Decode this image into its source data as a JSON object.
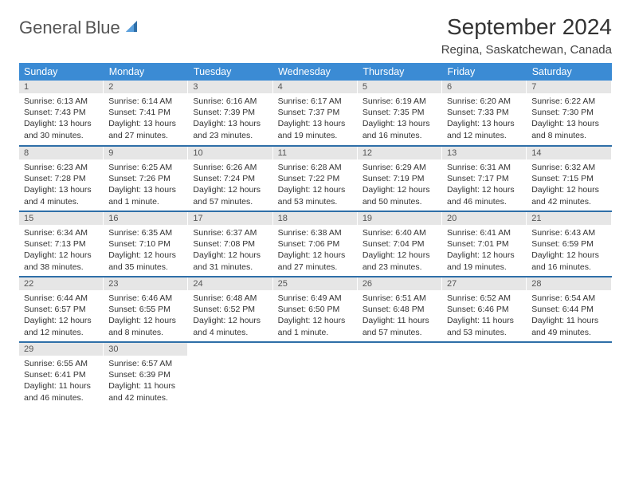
{
  "logo": {
    "part1": "General",
    "part2": "Blue"
  },
  "title": "September 2024",
  "subtitle": "Regina, Saskatchewan, Canada",
  "colors": {
    "header_bg": "#3b8bd4",
    "header_text": "#ffffff",
    "row_divider": "#2f6fa8",
    "daynum_bg": "#e6e6e6",
    "logo_gray": "#555555",
    "logo_blue": "#3b7fc4"
  },
  "dayNames": [
    "Sunday",
    "Monday",
    "Tuesday",
    "Wednesday",
    "Thursday",
    "Friday",
    "Saturday"
  ],
  "days": [
    {
      "n": 1,
      "sr": "6:13 AM",
      "ss": "7:43 PM",
      "dl": "13 hours and 30 minutes."
    },
    {
      "n": 2,
      "sr": "6:14 AM",
      "ss": "7:41 PM",
      "dl": "13 hours and 27 minutes."
    },
    {
      "n": 3,
      "sr": "6:16 AM",
      "ss": "7:39 PM",
      "dl": "13 hours and 23 minutes."
    },
    {
      "n": 4,
      "sr": "6:17 AM",
      "ss": "7:37 PM",
      "dl": "13 hours and 19 minutes."
    },
    {
      "n": 5,
      "sr": "6:19 AM",
      "ss": "7:35 PM",
      "dl": "13 hours and 16 minutes."
    },
    {
      "n": 6,
      "sr": "6:20 AM",
      "ss": "7:33 PM",
      "dl": "13 hours and 12 minutes."
    },
    {
      "n": 7,
      "sr": "6:22 AM",
      "ss": "7:30 PM",
      "dl": "13 hours and 8 minutes."
    },
    {
      "n": 8,
      "sr": "6:23 AM",
      "ss": "7:28 PM",
      "dl": "13 hours and 4 minutes."
    },
    {
      "n": 9,
      "sr": "6:25 AM",
      "ss": "7:26 PM",
      "dl": "13 hours and 1 minute."
    },
    {
      "n": 10,
      "sr": "6:26 AM",
      "ss": "7:24 PM",
      "dl": "12 hours and 57 minutes."
    },
    {
      "n": 11,
      "sr": "6:28 AM",
      "ss": "7:22 PM",
      "dl": "12 hours and 53 minutes."
    },
    {
      "n": 12,
      "sr": "6:29 AM",
      "ss": "7:19 PM",
      "dl": "12 hours and 50 minutes."
    },
    {
      "n": 13,
      "sr": "6:31 AM",
      "ss": "7:17 PM",
      "dl": "12 hours and 46 minutes."
    },
    {
      "n": 14,
      "sr": "6:32 AM",
      "ss": "7:15 PM",
      "dl": "12 hours and 42 minutes."
    },
    {
      "n": 15,
      "sr": "6:34 AM",
      "ss": "7:13 PM",
      "dl": "12 hours and 38 minutes."
    },
    {
      "n": 16,
      "sr": "6:35 AM",
      "ss": "7:10 PM",
      "dl": "12 hours and 35 minutes."
    },
    {
      "n": 17,
      "sr": "6:37 AM",
      "ss": "7:08 PM",
      "dl": "12 hours and 31 minutes."
    },
    {
      "n": 18,
      "sr": "6:38 AM",
      "ss": "7:06 PM",
      "dl": "12 hours and 27 minutes."
    },
    {
      "n": 19,
      "sr": "6:40 AM",
      "ss": "7:04 PM",
      "dl": "12 hours and 23 minutes."
    },
    {
      "n": 20,
      "sr": "6:41 AM",
      "ss": "7:01 PM",
      "dl": "12 hours and 19 minutes."
    },
    {
      "n": 21,
      "sr": "6:43 AM",
      "ss": "6:59 PM",
      "dl": "12 hours and 16 minutes."
    },
    {
      "n": 22,
      "sr": "6:44 AM",
      "ss": "6:57 PM",
      "dl": "12 hours and 12 minutes."
    },
    {
      "n": 23,
      "sr": "6:46 AM",
      "ss": "6:55 PM",
      "dl": "12 hours and 8 minutes."
    },
    {
      "n": 24,
      "sr": "6:48 AM",
      "ss": "6:52 PM",
      "dl": "12 hours and 4 minutes."
    },
    {
      "n": 25,
      "sr": "6:49 AM",
      "ss": "6:50 PM",
      "dl": "12 hours and 1 minute."
    },
    {
      "n": 26,
      "sr": "6:51 AM",
      "ss": "6:48 PM",
      "dl": "11 hours and 57 minutes."
    },
    {
      "n": 27,
      "sr": "6:52 AM",
      "ss": "6:46 PM",
      "dl": "11 hours and 53 minutes."
    },
    {
      "n": 28,
      "sr": "6:54 AM",
      "ss": "6:44 PM",
      "dl": "11 hours and 49 minutes."
    },
    {
      "n": 29,
      "sr": "6:55 AM",
      "ss": "6:41 PM",
      "dl": "11 hours and 46 minutes."
    },
    {
      "n": 30,
      "sr": "6:57 AM",
      "ss": "6:39 PM",
      "dl": "11 hours and 42 minutes."
    }
  ],
  "labels": {
    "sunrise": "Sunrise:",
    "sunset": "Sunset:",
    "daylight": "Daylight:"
  },
  "layout": {
    "startWeekday": 0,
    "rows": 5,
    "cols": 7
  }
}
